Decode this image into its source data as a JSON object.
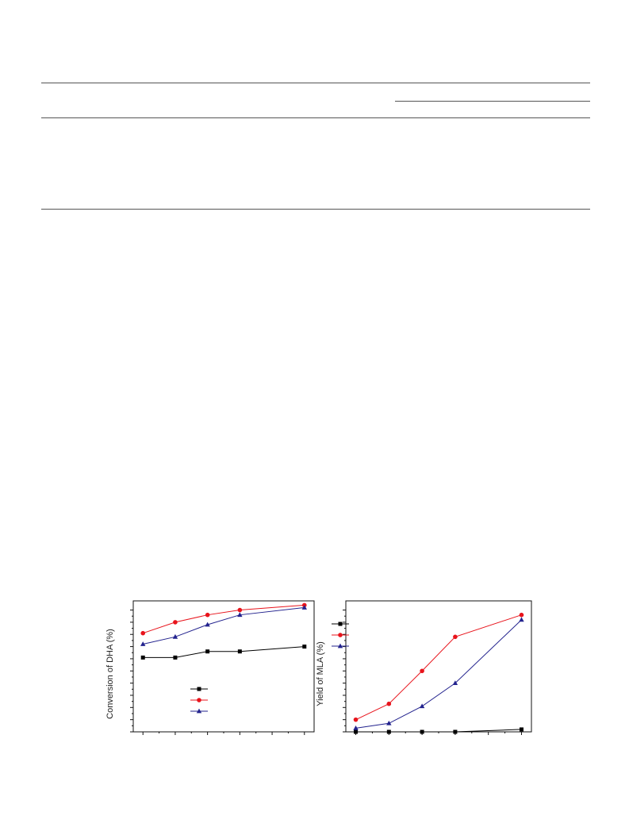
{
  "table": {
    "rules": [
      "top",
      "column-group",
      "header-bottom",
      "bottom"
    ]
  },
  "chart_data": [
    {
      "type": "line",
      "ylabel": "Conversion of DHA (%)",
      "xlabel": "",
      "x": [
        1,
        2,
        3,
        4,
        6
      ],
      "xlim": [
        0.7,
        6.3
      ],
      "ylim": [
        0,
        100
      ],
      "grid": false,
      "legend": "center-right",
      "series": [
        {
          "color": "#000000",
          "marker": "square",
          "values": [
            61,
            61,
            66,
            66,
            70
          ]
        },
        {
          "color": "#e8141c",
          "marker": "circle",
          "values": [
            81,
            90,
            96,
            100,
            104
          ]
        },
        {
          "color": "#23238e",
          "marker": "triangle",
          "values": [
            72,
            78,
            88,
            96,
            102
          ]
        }
      ]
    },
    {
      "type": "line",
      "ylabel": "Yield of MLA (%)",
      "xlabel": "",
      "x": [
        1,
        2,
        3,
        4,
        6
      ],
      "xlim": [
        0.7,
        6.3
      ],
      "ylim": [
        0,
        100
      ],
      "grid": false,
      "legend": "top-left",
      "series": [
        {
          "color": "#000000",
          "marker": "square",
          "values": [
            0,
            0,
            0,
            0,
            2
          ]
        },
        {
          "color": "#e8141c",
          "marker": "circle",
          "values": [
            10,
            23,
            50,
            78,
            96
          ]
        },
        {
          "color": "#23238e",
          "marker": "triangle",
          "values": [
            3,
            7,
            21,
            40,
            92
          ]
        }
      ]
    }
  ]
}
